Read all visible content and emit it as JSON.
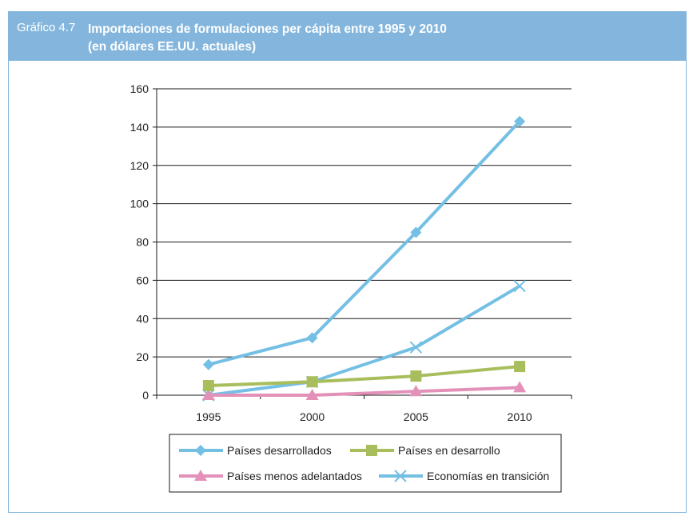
{
  "header": {
    "figure_label": "Gráfico 4.7",
    "title_line1": "Importaciones de formulaciones per cápita entre 1995 y 2010",
    "title_line2": "(en dólares EE.UU. actuales)"
  },
  "colors": {
    "header_bg": "#84b6dd",
    "blue_series": "#74bfe4",
    "green_series": "#a8be5c",
    "pink_series": "#e391b9"
  },
  "chart_data": {
    "type": "line",
    "x": [
      "1995",
      "2000",
      "2005",
      "2010"
    ],
    "ylim": [
      0,
      160
    ],
    "yticks": [
      0,
      20,
      40,
      60,
      80,
      100,
      120,
      140,
      160
    ],
    "grid": true,
    "legend_position": "bottom",
    "series": [
      {
        "name": "Países desarrollados",
        "marker": "diamond",
        "color": "#74bfe4",
        "values": [
          16,
          30,
          85,
          143
        ]
      },
      {
        "name": "Países en desarrollo",
        "marker": "square",
        "color": "#a8be5c",
        "values": [
          5,
          7,
          10,
          15
        ]
      },
      {
        "name": "Países menos adelantados",
        "marker": "triangle",
        "color": "#e391b9",
        "values": [
          0,
          0,
          2,
          4
        ]
      },
      {
        "name": "Economías en transición",
        "marker": "x",
        "color": "#74bfe4",
        "values": [
          0,
          7,
          25,
          57
        ]
      }
    ]
  }
}
